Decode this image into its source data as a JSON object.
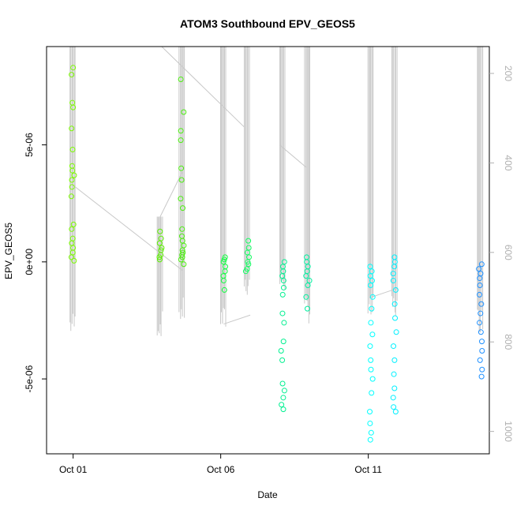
{
  "chart_data": {
    "type": "scatter",
    "title": "ATOM3 Southbound EPV_GEOS5",
    "xlabel": "Date",
    "ylabel": "EPV_GEOS5",
    "x_tick_labels": [
      "Oct 01",
      "Oct 06",
      "Oct 11"
    ],
    "x_ticks_day": [
      1,
      6,
      11
    ],
    "xlim_day": [
      0.1,
      15.1
    ],
    "y_tick_labels": [
      "-5e-06",
      "0e+00",
      "5e-06"
    ],
    "y_ticks": [
      -5e-06,
      0,
      5e-06
    ],
    "ylim": [
      -8.2e-06,
      9.2e-06
    ],
    "right_axis": {
      "label": "",
      "ticks": [
        200,
        400,
        600,
        800,
        1000
      ],
      "tick_labels": [
        "200",
        "400",
        "600",
        "800",
        "1000"
      ],
      "lim": [
        1050,
        140
      ],
      "color": "#b0b0b0"
    },
    "grid": false,
    "legend": "none",
    "point_color_scale": [
      "#7cfc00",
      "#00ff7f",
      "#00ffff",
      "#1e90ff"
    ],
    "pressure_curtain_color": "#c8c8c8",
    "clusters": [
      {
        "day": 1.0,
        "color": "#7cfc00",
        "y_values": [
          8.3e-06,
          8e-06,
          6.8e-06,
          6.6e-06,
          5.7e-06,
          4.8e-06,
          4.1e-06,
          3.9e-06,
          3.7e-06,
          3.5e-06,
          3.2e-06,
          2.8e-06,
          1.6e-06,
          1.4e-06,
          1e-06,
          8e-07,
          6e-07,
          4e-07,
          2e-07,
          5e-08
        ]
      },
      {
        "day": 3.95,
        "color": "#5cf000",
        "y_values": [
          1.3e-06,
          1e-06,
          8e-07,
          6e-07,
          5e-07,
          3e-07,
          2e-07,
          1e-07
        ]
      },
      {
        "day": 4.7,
        "color": "#4cef10",
        "y_values": [
          7.8e-06,
          6.4e-06,
          5.6e-06,
          5.2e-06,
          4e-06,
          3.5e-06,
          2.7e-06,
          2.3e-06,
          1.4e-06,
          1.1e-06,
          9e-07,
          7e-07,
          5e-07,
          3e-07,
          1e-07,
          -1e-07,
          4e-07,
          2e-07
        ]
      },
      {
        "day": 6.1,
        "color": "#10ff40",
        "y_values": [
          2e-07,
          1e-07,
          0.0,
          -2e-07,
          -4e-07,
          -6e-07,
          -8e-07,
          -1.2e-06
        ]
      },
      {
        "day": 6.9,
        "color": "#10ff60",
        "y_values": [
          9e-07,
          6e-07,
          4e-07,
          2e-07,
          0.0,
          -1e-07,
          -3e-07,
          -4e-07
        ]
      },
      {
        "day": 8.1,
        "color": "#00f090",
        "y_values": [
          0.0,
          -2e-07,
          -4e-07,
          -6e-07,
          -8e-07,
          -1.1e-06,
          -1.4e-06,
          -2.2e-06,
          -2.6e-06,
          -3.4e-06,
          -3.8e-06,
          -4.2e-06,
          -5.2e-06,
          -5.5e-06,
          -5.8e-06,
          -6.1e-06,
          -6.3e-06
        ]
      },
      {
        "day": 8.95,
        "color": "#00f0a0",
        "y_values": [
          2e-07,
          0.0,
          -2e-07,
          -4e-07,
          -6e-07,
          -8e-07,
          -1e-06,
          -1.5e-06,
          -2e-06
        ]
      },
      {
        "day": 11.1,
        "color": "#00ffff",
        "y_values": [
          -2e-07,
          -4e-07,
          -6e-07,
          -8e-07,
          -1e-06,
          -1.5e-06,
          -2e-06,
          -2.6e-06,
          -3.1e-06,
          -3.6e-06,
          -4.2e-06,
          -4.6e-06,
          -5e-06,
          -5.6e-06,
          -6.4e-06,
          -6.9e-06,
          -7.3e-06,
          -7.6e-06
        ]
      },
      {
        "day": 11.9,
        "color": "#00f0ff",
        "y_values": [
          2e-07,
          0.0,
          -2e-07,
          -5e-07,
          -8e-07,
          -1.2e-06,
          -1.8e-06,
          -2.4e-06,
          -3e-06,
          -3.6e-06,
          -4.2e-06,
          -4.8e-06,
          -5.4e-06,
          -5.8e-06,
          -6.2e-06,
          -6.4e-06
        ]
      },
      {
        "day": 14.8,
        "color": "#1e90ff",
        "y_values": [
          -1e-07,
          -3e-07,
          -5e-07,
          -7e-07,
          -1e-06,
          -1.4e-06,
          -1.8e-06,
          -2.2e-06,
          -2.6e-06,
          -3e-06,
          -3.4e-06,
          -3.8e-06,
          -4.2e-06,
          -4.6e-06,
          -4.9e-06
        ]
      }
    ],
    "pressure_curtains": [
      {
        "day": 1.0,
        "p_top": 140,
        "p_bottom": 790
      },
      {
        "day": 3.95,
        "p_top": 520,
        "p_bottom": 790
      },
      {
        "day": 4.7,
        "p_top": 140,
        "p_bottom": 760
      },
      {
        "day": 6.1,
        "p_top": 140,
        "p_bottom": 780
      },
      {
        "day": 6.9,
        "p_top": 140,
        "p_bottom": 700
      },
      {
        "day": 8.1,
        "p_top": 140,
        "p_bottom": 690
      },
      {
        "day": 8.95,
        "p_top": 140,
        "p_bottom": 760
      },
      {
        "day": 11.1,
        "p_top": 140,
        "p_bottom": 760
      },
      {
        "day": 11.9,
        "p_top": 140,
        "p_bottom": 750
      },
      {
        "day": 14.8,
        "p_top": 140,
        "p_bottom": 780
      }
    ],
    "transit_lines": [
      [
        [
          1.0,
          450
        ],
        [
          4.7,
          640
        ]
      ],
      [
        [
          3.95,
          520
        ],
        [
          4.7,
          420
        ]
      ],
      [
        [
          4.0,
          140
        ],
        [
          6.8,
          320
        ]
      ],
      [
        [
          6.1,
          760
        ],
        [
          7.0,
          740
        ]
      ],
      [
        [
          8.0,
          360
        ],
        [
          8.9,
          410
        ]
      ],
      [
        [
          11.1,
          700
        ],
        [
          12.0,
          680
        ]
      ]
    ]
  }
}
